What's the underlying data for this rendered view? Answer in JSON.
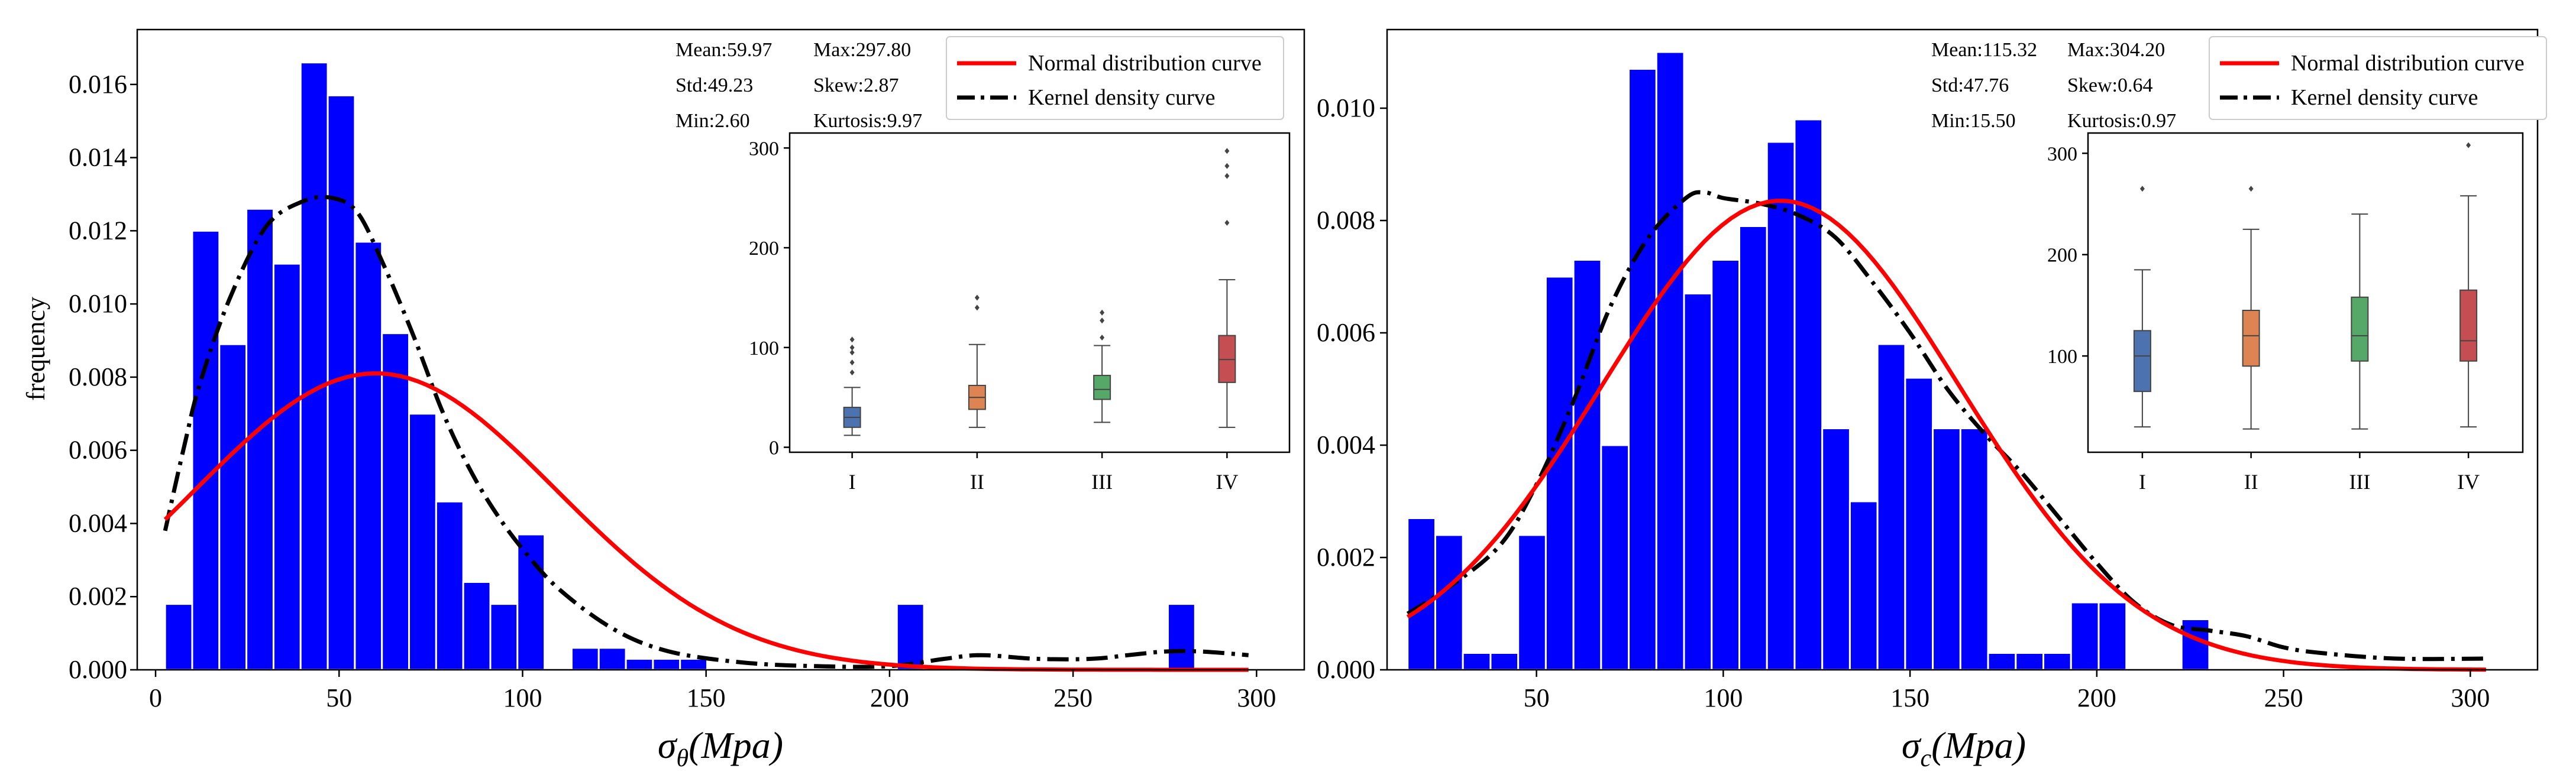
{
  "colors": {
    "hist": "#0000FF",
    "normal": "#FF0000",
    "kde": "#000000",
    "box": [
      "#4C72B0",
      "#DD8452",
      "#55A868",
      "#C44E52"
    ]
  },
  "chart_data": [
    {
      "type": "bar",
      "title": "",
      "xlabel": "σθ(Mpa)",
      "xlabel_main": "σ",
      "xlabel_sub": "θ",
      "xlabel_unit": "(Mpa)",
      "ylabel": "frequency",
      "xlim": [
        -5,
        313
      ],
      "ylim": [
        0,
        0.0175
      ],
      "xticks": [
        0,
        50,
        100,
        150,
        200,
        250,
        300
      ],
      "xtick_labels": [
        "0",
        "50",
        "100",
        "150",
        "200",
        "250",
        "300"
      ],
      "yticks": [
        0,
        0.002,
        0.004,
        0.006,
        0.008,
        0.01,
        0.012,
        0.014,
        0.016
      ],
      "ytick_labels": [
        "0.000",
        "0.002",
        "0.004",
        "0.006",
        "0.008",
        "0.010",
        "0.012",
        "0.014",
        "0.016"
      ],
      "bin_start": 2.6,
      "bin_width": 7.385,
      "hist_values": [
        0.0018,
        0.012,
        0.0089,
        0.0126,
        0.0111,
        0.0166,
        0.0157,
        0.0117,
        0.0092,
        0.007,
        0.0046,
        0.0024,
        0.0018,
        0.0037,
        0.0,
        0.0006,
        0.0006,
        0.0003,
        0.0003,
        0.0003,
        0.0,
        0.0,
        0.0,
        0.0,
        0.0,
        0.0,
        0.0,
        0.0018,
        0.0,
        0.0,
        0.0,
        0.0,
        0.0,
        0.0,
        0.0,
        0.0,
        0.0,
        0.0018,
        0.0,
        0.0
      ],
      "normal": {
        "mean": 59.97,
        "std": 49.23,
        "x_range": [
          2.6,
          297.8
        ]
      },
      "kde": {
        "x": [
          2.6,
          8,
          12,
          20,
          30,
          40,
          48,
          55,
          62,
          70,
          78,
          85,
          92,
          100,
          110,
          125,
          140,
          160,
          180,
          200,
          215,
          225,
          240,
          255,
          265,
          275,
          285,
          297.8
        ],
        "y": [
          0.0038,
          0.0062,
          0.0078,
          0.0101,
          0.0121,
          0.0128,
          0.0129,
          0.0125,
          0.0111,
          0.0092,
          0.0071,
          0.0056,
          0.0044,
          0.0033,
          0.0022,
          0.0011,
          0.0005,
          0.0002,
          0.0001,
          0.0001,
          0.0003,
          0.0004,
          0.0003,
          0.0003,
          0.0004,
          0.0005,
          0.0005,
          0.0004
        ]
      },
      "legend": [
        "Normal distribution curve",
        "Kernel density curve"
      ],
      "stats": {
        "mean": "Mean:59.97",
        "std": "Std:49.23",
        "min": "Min:2.60",
        "max": "Max:297.80",
        "skew": "Skew:2.87",
        "kurtosis": "Kurtosis:9.97"
      },
      "inset": {
        "type": "box",
        "categories": [
          "I",
          "II",
          "III",
          "IV"
        ],
        "ylim": [
          -5,
          315
        ],
        "yticks": [
          0,
          100,
          200,
          300
        ],
        "ytick_labels": [
          "0",
          "100",
          "200",
          "300"
        ],
        "boxes": [
          {
            "whislo": 12,
            "q1": 20,
            "med": 30,
            "q3": 40,
            "whishi": 60,
            "fliers": [
              75,
              85,
              95,
              100,
              108
            ]
          },
          {
            "whislo": 20,
            "q1": 38,
            "med": 50,
            "q3": 62,
            "whishi": 103,
            "fliers": [
              140,
              150
            ]
          },
          {
            "whislo": 25,
            "q1": 48,
            "med": 58,
            "q3": 72,
            "whishi": 102,
            "fliers": [
              110,
              127,
              135
            ]
          },
          {
            "whislo": 20,
            "q1": 65,
            "med": 88,
            "q3": 112,
            "whishi": 168,
            "fliers": [
              225,
              272,
              282,
              297
            ]
          }
        ]
      }
    },
    {
      "type": "bar",
      "title": "",
      "xlabel": "σc(Mpa)",
      "xlabel_main": "σ",
      "xlabel_sub": "c",
      "xlabel_unit": "(Mpa)",
      "ylabel": "",
      "xlim": [
        10,
        318
      ],
      "ylim": [
        0,
        0.0114
      ],
      "xticks": [
        50,
        100,
        150,
        200,
        250,
        300
      ],
      "xtick_labels": [
        "50",
        "100",
        "150",
        "200",
        "250",
        "300"
      ],
      "yticks": [
        0,
        0.002,
        0.004,
        0.006,
        0.008,
        0.01
      ],
      "ytick_labels": [
        "0.000",
        "0.002",
        "0.004",
        "0.006",
        "0.008",
        "0.010"
      ],
      "bin_start": 15.5,
      "bin_width": 7.4,
      "hist_values": [
        0.0027,
        0.0024,
        0.0003,
        0.0003,
        0.0024,
        0.007,
        0.0073,
        0.004,
        0.0107,
        0.011,
        0.0067,
        0.0073,
        0.0079,
        0.0094,
        0.0098,
        0.0043,
        0.003,
        0.0058,
        0.0052,
        0.0043,
        0.0043,
        0.0003,
        0.0003,
        0.0003,
        0.0012,
        0.0012,
        0.0,
        0.0,
        0.0009,
        0.0,
        0.0,
        0.0,
        0.0,
        0.0,
        0.0,
        0.0,
        0.0,
        0.0,
        0.0
      ],
      "normal": {
        "mean": 115.32,
        "std": 47.76,
        "x_range": [
          15.5,
          304.2
        ]
      },
      "kde": {
        "x": [
          15.5,
          25,
          40,
          50,
          60,
          70,
          80,
          90,
          95,
          100,
          110,
          120,
          130,
          140,
          150,
          160,
          170,
          180,
          190,
          200,
          210,
          220,
          230,
          240,
          250,
          260,
          280,
          304.2
        ],
        "y": [
          0.001,
          0.0014,
          0.0022,
          0.0033,
          0.0048,
          0.0065,
          0.0077,
          0.0084,
          0.0085,
          0.0084,
          0.0083,
          0.0081,
          0.0077,
          0.0069,
          0.006,
          0.005,
          0.0042,
          0.0035,
          0.0027,
          0.0019,
          0.0012,
          0.0008,
          0.0007,
          0.0006,
          0.0004,
          0.0003,
          0.0002,
          0.0002
        ]
      },
      "legend": [
        "Normal distribution curve",
        "Kernel density curve"
      ],
      "stats": {
        "mean": "Mean:115.32",
        "std": "Std:47.76",
        "min": "Min:15.50",
        "max": "Max:304.20",
        "skew": "Skew:0.64",
        "kurtosis": "Kurtosis:0.97"
      },
      "inset": {
        "type": "box",
        "categories": [
          "I",
          "II",
          "III",
          "IV"
        ],
        "ylim": [
          5,
          320
        ],
        "yticks": [
          100,
          200,
          300
        ],
        "ytick_labels": [
          "100",
          "200",
          "300"
        ],
        "boxes": [
          {
            "whislo": 30,
            "q1": 65,
            "med": 100,
            "q3": 125,
            "whishi": 185,
            "fliers": [
              265
            ]
          },
          {
            "whislo": 28,
            "q1": 90,
            "med": 120,
            "q3": 145,
            "whishi": 225,
            "fliers": [
              265
            ]
          },
          {
            "whislo": 28,
            "q1": 95,
            "med": 120,
            "q3": 158,
            "whishi": 240,
            "fliers": []
          },
          {
            "whislo": 30,
            "q1": 95,
            "med": 115,
            "q3": 165,
            "whishi": 258,
            "fliers": [
              308
            ]
          }
        ]
      }
    }
  ]
}
